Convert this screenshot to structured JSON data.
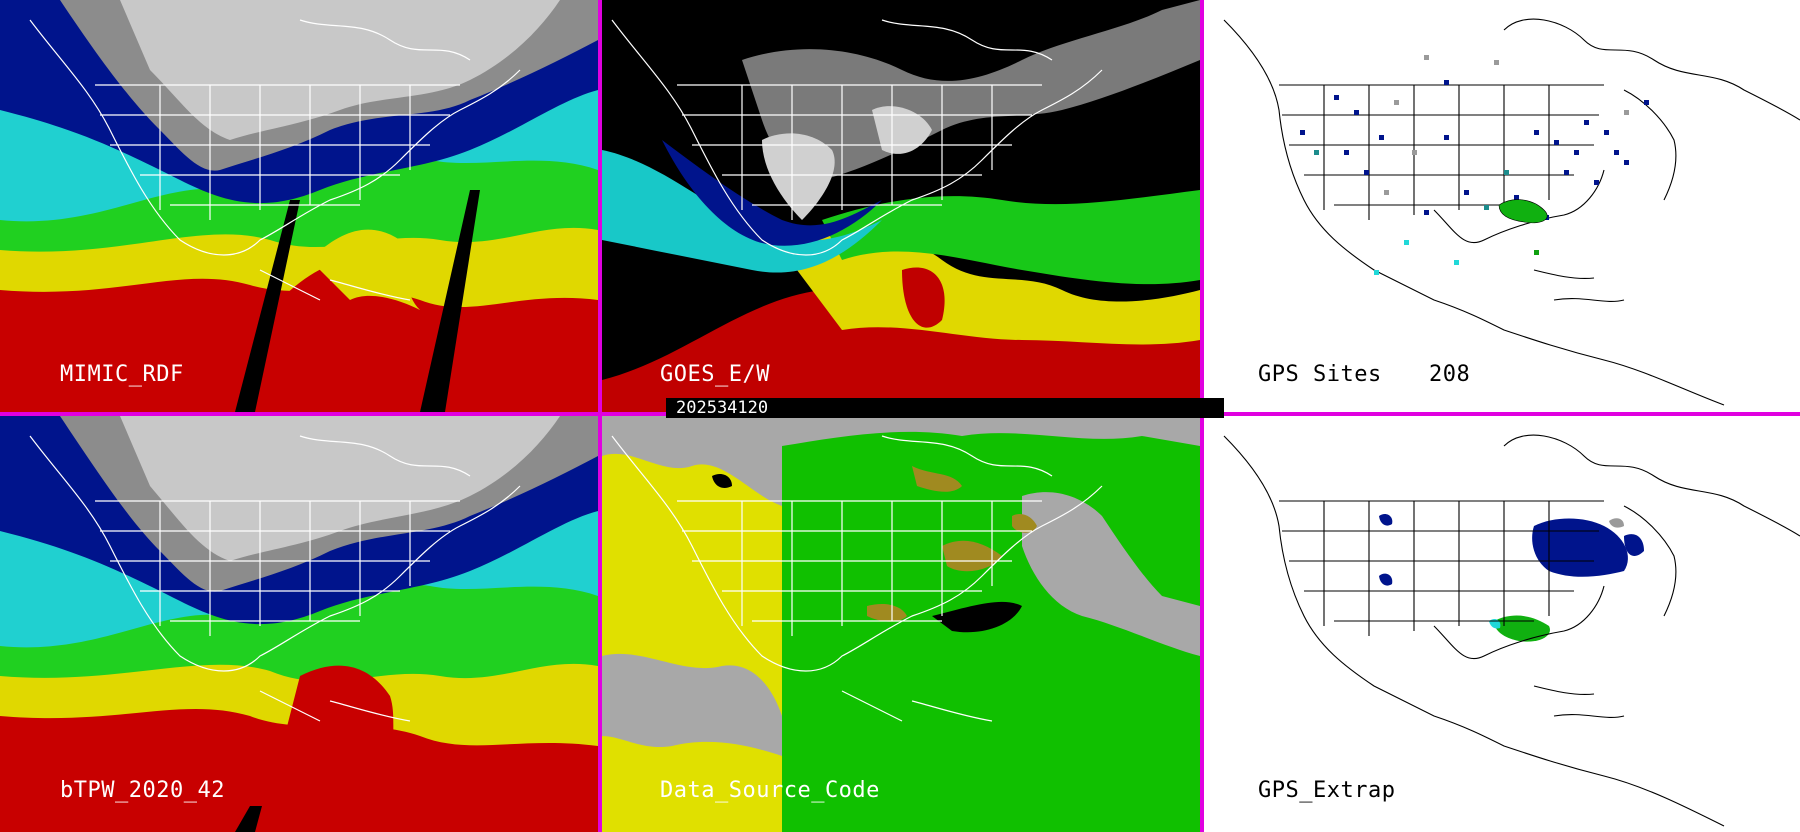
{
  "panels": {
    "mimic": {
      "label": "MIMIC_RDF"
    },
    "goes": {
      "label": "GOES_E/W"
    },
    "gps_sites": {
      "label": "GPS Sites",
      "count": "208"
    },
    "btpw": {
      "label": "bTPW_2020_42"
    },
    "data_source": {
      "label": "Data_Source_Code"
    },
    "gps_extrap": {
      "label": "GPS_Extrap"
    }
  },
  "timestamp": "202534120",
  "colors": {
    "divider": "#e000e0",
    "tpw_red": "#c80000",
    "tpw_yellow": "#e8e000",
    "tpw_green": "#20d020",
    "tpw_cyan": "#20d8d8",
    "tpw_blue": "#00128c",
    "tpw_gray": "#9a9a9a",
    "source_gray": "#a8a8a8",
    "source_yellow": "#e0e000",
    "source_green": "#10c000",
    "source_olive": "#a08a20"
  }
}
